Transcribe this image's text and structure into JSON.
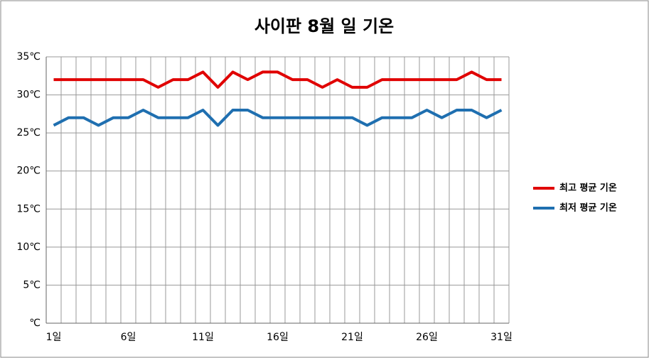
{
  "chart_data": {
    "type": "line",
    "title": "사이판 8월 일 기온",
    "categories": [
      "1일",
      null,
      null,
      null,
      null,
      "6일",
      null,
      null,
      null,
      null,
      "11일",
      null,
      null,
      null,
      null,
      "16일",
      null,
      null,
      null,
      null,
      "21일",
      null,
      null,
      null,
      null,
      "26일",
      null,
      null,
      null,
      null,
      "31일"
    ],
    "series": [
      {
        "name": "최고 평균 기온",
        "color": "#e00000",
        "values": [
          32,
          32,
          32,
          32,
          32,
          32,
          32,
          31,
          32,
          32,
          33,
          31,
          33,
          32,
          33,
          33,
          32,
          32,
          31,
          32,
          31,
          31,
          32,
          32,
          32,
          32,
          32,
          32,
          33,
          32,
          32
        ]
      },
      {
        "name": "최저 평균 기온",
        "color": "#1f6fb0",
        "values": [
          26,
          27,
          27,
          26,
          27,
          27,
          28,
          27,
          27,
          27,
          28,
          26,
          28,
          28,
          27,
          27,
          27,
          27,
          27,
          27,
          27,
          26,
          27,
          27,
          27,
          28,
          27,
          28,
          28,
          27,
          28
        ]
      }
    ],
    "ylim": [
      0,
      35
    ],
    "yticks": [
      {
        "value": 0,
        "label": "℃"
      },
      {
        "value": 5,
        "label": "5℃"
      },
      {
        "value": 10,
        "label": "10℃"
      },
      {
        "value": 15,
        "label": "15℃"
      },
      {
        "value": 20,
        "label": "20℃"
      },
      {
        "value": 25,
        "label": "25℃"
      },
      {
        "value": 30,
        "label": "30℃"
      },
      {
        "value": 35,
        "label": "35℃"
      }
    ],
    "grid": true,
    "legend": "right"
  }
}
